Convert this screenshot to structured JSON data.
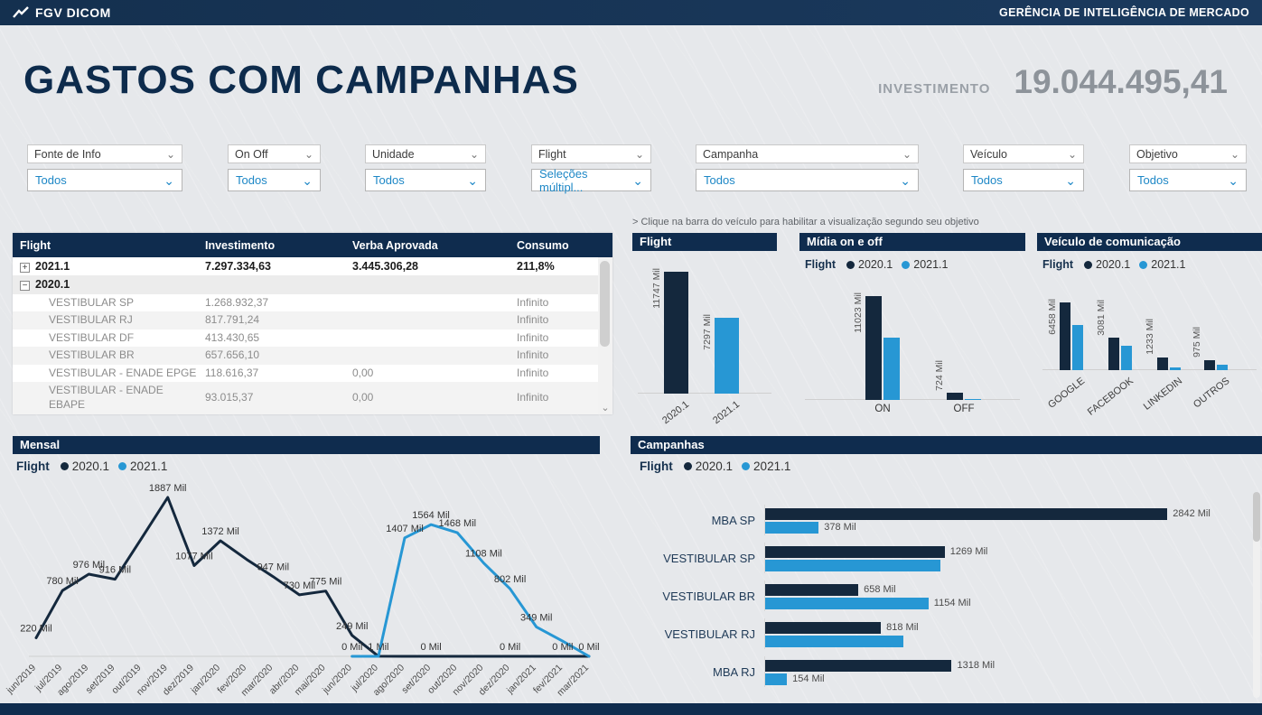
{
  "topbar": {
    "brand": "FGV DICOM",
    "department": "GERÊNCIA DE INTELIGÊNCIA DE MERCADO"
  },
  "header": {
    "title": "GASTOS COM CAMPANHAS",
    "investment_label": "INVESTIMENTO",
    "investment_value": "19.044.495,41"
  },
  "icons": {
    "chevron_down": "⌄",
    "scroll_down": "⌄"
  },
  "colors": {
    "navy": "#14283d",
    "blue": "#2797d4",
    "header": "#0f2c4e",
    "title": "#0d2b4c"
  },
  "filters": [
    {
      "label": "Fonte de Info",
      "value": "Todos"
    },
    {
      "label": "On Off",
      "value": "Todos"
    },
    {
      "label": "Unidade",
      "value": "Todos"
    },
    {
      "label": "Flight",
      "value": "Seleções múltipl..."
    },
    {
      "label": "Campanha",
      "value": "Todos"
    },
    {
      "label": "Veículo",
      "value": "Todos"
    },
    {
      "label": "Objetivo",
      "value": "Todos"
    }
  ],
  "note": "> Clique na barra do veículo para habilitar a visualização segundo seu objetivo",
  "table": {
    "columns": [
      "Flight",
      "Investimento",
      "Verba Aprovada",
      "Consumo"
    ],
    "rows": [
      {
        "level": 0,
        "expander": "+",
        "flight": "2021.1",
        "investimento": "7.297.334,63",
        "verba_aprovada": "3.445.306,28",
        "consumo": "211,8%"
      },
      {
        "level": 0,
        "expander": "−",
        "flight": "2020.1",
        "investimento": "",
        "verba_aprovada": "",
        "consumo": ""
      },
      {
        "level": 1,
        "flight": "VESTIBULAR SP",
        "investimento": "1.268.932,37",
        "verba_aprovada": "",
        "consumo": "Infinito"
      },
      {
        "level": 1,
        "flight": "VESTIBULAR RJ",
        "investimento": "817.791,24",
        "verba_aprovada": "",
        "consumo": "Infinito"
      },
      {
        "level": 1,
        "flight": "VESTIBULAR DF",
        "investimento": "413.430,65",
        "verba_aprovada": "",
        "consumo": "Infinito"
      },
      {
        "level": 1,
        "flight": "VESTIBULAR BR",
        "investimento": "657.656,10",
        "verba_aprovada": "",
        "consumo": "Infinito"
      },
      {
        "level": 1,
        "flight": "VESTIBULAR - ENADE EPGE",
        "investimento": "118.616,37",
        "verba_aprovada": "0,00",
        "consumo": "Infinito"
      },
      {
        "level": 1,
        "flight": "VESTIBULAR - ENADE EBAPE",
        "investimento": "93.015,37",
        "verba_aprovada": "0,00",
        "consumo": "Infinito"
      }
    ]
  },
  "legend": {
    "title": "Flight",
    "series": [
      "2020.1",
      "2021.1"
    ]
  },
  "chart_data": [
    {
      "type": "bar",
      "title": "Flight",
      "unit": "Mil",
      "categories": [
        "2020.1",
        "2021.1"
      ],
      "values": [
        11747,
        7297
      ],
      "labels": [
        "11747 Mil",
        "7297 Mil"
      ],
      "ylim": [
        0,
        12000
      ]
    },
    {
      "type": "bar",
      "title": "Mídia on e off",
      "unit": "Mil",
      "categories": [
        "ON",
        "OFF"
      ],
      "series": [
        {
          "name": "2020.1",
          "values": [
            11023,
            724
          ],
          "labels": [
            "11023 Mil",
            "724 Mil"
          ]
        },
        {
          "name": "2021.1",
          "values": [
            6573,
            60
          ],
          "labels": [
            "",
            ""
          ]
        }
      ],
      "ylim": [
        0,
        12000
      ],
      "legend_position": "top"
    },
    {
      "type": "bar",
      "title": "Veículo de comunicação",
      "unit": "Mil",
      "categories": [
        "GOOGLE",
        "FACEBOOK",
        "LINKEDIN",
        "OUTROS"
      ],
      "series": [
        {
          "name": "2020.1",
          "values": [
            6458,
            3081,
            1233,
            975
          ],
          "labels": [
            "6458 Mil",
            "3081 Mil",
            "1233 Mil",
            "975 Mil"
          ]
        },
        {
          "name": "2021.1",
          "values": [
            4300,
            2350,
            280,
            520
          ],
          "labels": [
            "",
            "",
            "",
            ""
          ]
        }
      ],
      "ylim": [
        0,
        7000
      ],
      "legend_position": "top"
    },
    {
      "type": "line",
      "title": "Mensal",
      "unit": "Mil",
      "x": [
        "jun/2019",
        "jul/2019",
        "ago/2019",
        "set/2019",
        "out/2019",
        "nov/2019",
        "dez/2019",
        "jan/2020",
        "fev/2020",
        "mar/2020",
        "abr/2020",
        "mai/2020",
        "jun/2020",
        "jul/2020",
        "ago/2020",
        "set/2020",
        "out/2020",
        "nov/2020",
        "dez/2020",
        "jan/2021",
        "fev/2021",
        "mar/2021"
      ],
      "series": [
        {
          "name": "2020.1",
          "values": [
            220,
            780,
            976,
            916,
            1400,
            1887,
            1077,
            1372,
            1150,
            947,
            730,
            775,
            249,
            1,
            0,
            0,
            0,
            0,
            0,
            0,
            0,
            0
          ],
          "labels": [
            "220 Mil",
            "780 Mil",
            "976 Mil",
            "916 Mil",
            "",
            "1887 Mil",
            "1077 Mil",
            "1372 Mil",
            "",
            "947 Mil",
            "730 Mil",
            "775 Mil",
            "249 Mil",
            "1 Mil",
            "",
            "0 Mil",
            "",
            "",
            "0 Mil",
            "",
            "0 Mil",
            ""
          ]
        },
        {
          "name": "2021.1",
          "values": [
            null,
            null,
            null,
            null,
            null,
            null,
            null,
            null,
            null,
            null,
            null,
            null,
            0,
            0,
            1407,
            1564,
            1468,
            1108,
            802,
            349,
            180,
            0
          ],
          "labels": [
            "",
            "",
            "",
            "",
            "",
            "",
            "",
            "",
            "",
            "",
            "",
            "",
            "0 Mil",
            "",
            "1407 Mil",
            "1564 Mil",
            "1468 Mil",
            "1108 Mil",
            "802 Mil",
            "349 Mil",
            "",
            "0 Mil"
          ]
        }
      ],
      "ylim": [
        0,
        2000
      ],
      "legend_position": "top"
    },
    {
      "type": "bar-horizontal",
      "title": "Campanhas",
      "unit": "Mil",
      "categories": [
        "MBA SP",
        "VESTIBULAR SP",
        "VESTIBULAR BR",
        "VESTIBULAR RJ",
        "MBA RJ"
      ],
      "series": [
        {
          "name": "2020.1",
          "values": [
            2842,
            1269,
            658,
            818,
            1318
          ],
          "labels": [
            "2842 Mil",
            "1269 Mil",
            "658 Mil",
            "818 Mil",
            "1318 Mil"
          ]
        },
        {
          "name": "2021.1",
          "values": [
            378,
            1240,
            1154,
            975,
            154
          ],
          "labels": [
            "378 Mil",
            "",
            "1154 Mil",
            "",
            "154 Mil"
          ]
        }
      ],
      "xlim": [
        0,
        3000
      ],
      "legend_position": "top"
    }
  ]
}
